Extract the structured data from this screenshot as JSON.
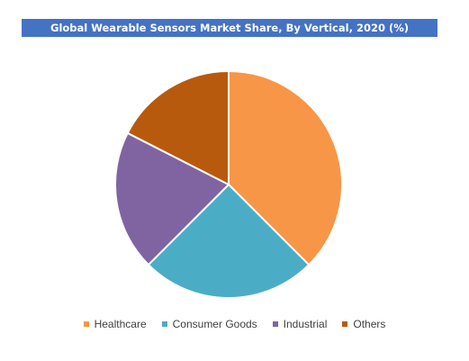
{
  "chart_data": {
    "type": "pie",
    "title": "Global Wearable Sensors Market Share, By Vertical, 2020 (%)",
    "categories": [
      "Healthcare",
      "Consumer Goods",
      "Industrial",
      "Others"
    ],
    "values": [
      37.5,
      25.0,
      20.0,
      17.5
    ],
    "unit": "%",
    "colors": [
      "#f79646",
      "#4bacc6",
      "#8064a2",
      "#b85a0d"
    ],
    "start_angle_deg": 0,
    "direction": "clockwise",
    "legend_position": "bottom",
    "title_background": "#4472c4"
  }
}
